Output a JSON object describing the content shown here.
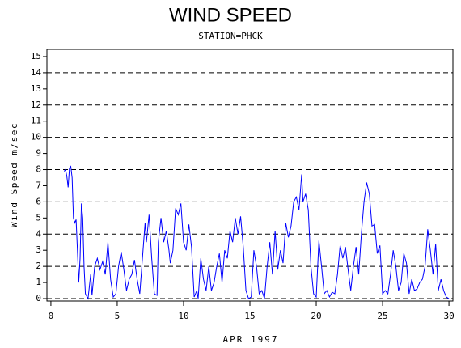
{
  "chart_data": {
    "type": "line",
    "title": "WIND SPEED",
    "subtitle": "STATION=PHCK",
    "x_label": "APR 1997",
    "y_label": "Wind Speed m/sec",
    "color": "#0000ff",
    "xlim": [
      -0.3,
      30.3
    ],
    "xticks": [
      0,
      5,
      10,
      15,
      20,
      25,
      30
    ],
    "ylim": [
      -0.15,
      15.45
    ],
    "yticks": [
      0,
      1,
      2,
      3,
      4,
      5,
      6,
      7,
      8,
      9,
      10,
      11,
      12,
      13,
      14,
      15
    ],
    "grid_lines": [
      0,
      2,
      4,
      6,
      8,
      10,
      12,
      14
    ],
    "x": [
      1.0,
      1.1,
      1.2,
      1.3,
      1.4,
      1.5,
      1.6,
      1.7,
      1.8,
      1.9,
      2.0,
      2.1,
      2.2,
      2.3,
      2.4,
      2.5,
      2.6,
      2.8,
      3.0,
      3.1,
      3.3,
      3.5,
      3.7,
      3.9,
      4.1,
      4.3,
      4.5,
      4.7,
      4.9,
      5.1,
      5.3,
      5.5,
      5.7,
      5.9,
      6.1,
      6.3,
      6.5,
      6.7,
      6.9,
      7.1,
      7.2,
      7.4,
      7.6,
      7.8,
      8.0,
      8.1,
      8.3,
      8.5,
      8.7,
      8.9,
      9.0,
      9.2,
      9.4,
      9.6,
      9.8,
      10.0,
      10.2,
      10.4,
      10.6,
      10.8,
      11.0,
      11.1,
      11.3,
      11.5,
      11.7,
      11.9,
      12.1,
      12.3,
      12.5,
      12.7,
      12.9,
      13.1,
      13.3,
      13.5,
      13.7,
      13.9,
      14.1,
      14.3,
      14.5,
      14.7,
      14.9,
      15.1,
      15.3,
      15.5,
      15.7,
      15.9,
      16.1,
      16.3,
      16.5,
      16.7,
      16.9,
      17.1,
      17.3,
      17.5,
      17.7,
      17.9,
      18.1,
      18.3,
      18.5,
      18.7,
      18.9,
      19.0,
      19.2,
      19.4,
      19.6,
      19.8,
      20.0,
      20.2,
      20.4,
      20.6,
      20.8,
      21.0,
      21.2,
      21.4,
      21.6,
      21.8,
      22.0,
      22.2,
      22.4,
      22.6,
      22.8,
      23.0,
      23.2,
      23.4,
      23.6,
      23.8,
      24.0,
      24.2,
      24.4,
      24.6,
      24.8,
      25.0,
      25.2,
      25.4,
      25.6,
      25.8,
      26.0,
      26.2,
      26.4,
      26.6,
      26.8,
      27.0,
      27.2,
      27.4,
      27.6,
      27.8,
      28.0,
      28.2,
      28.4,
      28.6,
      28.8,
      29.0,
      29.2,
      29.4,
      29.6,
      29.8,
      30.0
    ],
    "values": [
      7.9,
      8.0,
      7.6,
      6.9,
      8.1,
      8.2,
      7.5,
      5.0,
      4.7,
      4.9,
      3.0,
      1.0,
      2.5,
      5.9,
      5.0,
      2.0,
      0.3,
      0.0,
      1.5,
      0.2,
      2.0,
      2.5,
      1.8,
      2.3,
      1.5,
      3.5,
      1.2,
      0.1,
      0.3,
      2.0,
      2.9,
      1.8,
      0.5,
      1.2,
      1.5,
      2.4,
      1.2,
      0.3,
      2.5,
      4.7,
      3.5,
      5.2,
      2.5,
      0.3,
      0.2,
      3.5,
      5.0,
      3.5,
      4.2,
      3.0,
      2.2,
      3.0,
      5.6,
      5.2,
      5.9,
      3.5,
      3.0,
      4.6,
      3.2,
      0.1,
      0.5,
      0.0,
      2.5,
      1.2,
      0.5,
      2.0,
      0.5,
      1.0,
      2.0,
      2.8,
      1.0,
      3.0,
      2.5,
      4.2,
      3.5,
      5.0,
      4.0,
      5.1,
      3.2,
      0.5,
      0.0,
      0.1,
      3.0,
      2.0,
      0.3,
      0.5,
      0.0,
      2.0,
      3.5,
      1.5,
      4.2,
      1.8,
      3.0,
      2.2,
      4.7,
      3.8,
      4.5,
      6.0,
      6.3,
      5.5,
      7.7,
      6.0,
      6.5,
      5.5,
      2.0,
      0.3,
      0.1,
      3.6,
      2.0,
      0.3,
      0.5,
      0.1,
      0.4,
      0.3,
      1.5,
      3.3,
      2.5,
      3.2,
      1.8,
      0.5,
      2.0,
      3.2,
      1.5,
      4.0,
      6.0,
      7.2,
      6.5,
      4.5,
      4.6,
      2.8,
      3.3,
      0.3,
      0.5,
      0.3,
      1.5,
      3.0,
      2.0,
      0.5,
      1.0,
      2.8,
      2.2,
      0.3,
      1.2,
      0.5,
      0.6,
      1.0,
      1.2,
      2.0,
      4.3,
      3.0,
      1.5,
      3.4,
      0.5,
      1.2,
      0.5,
      0.1,
      0.0
    ]
  }
}
